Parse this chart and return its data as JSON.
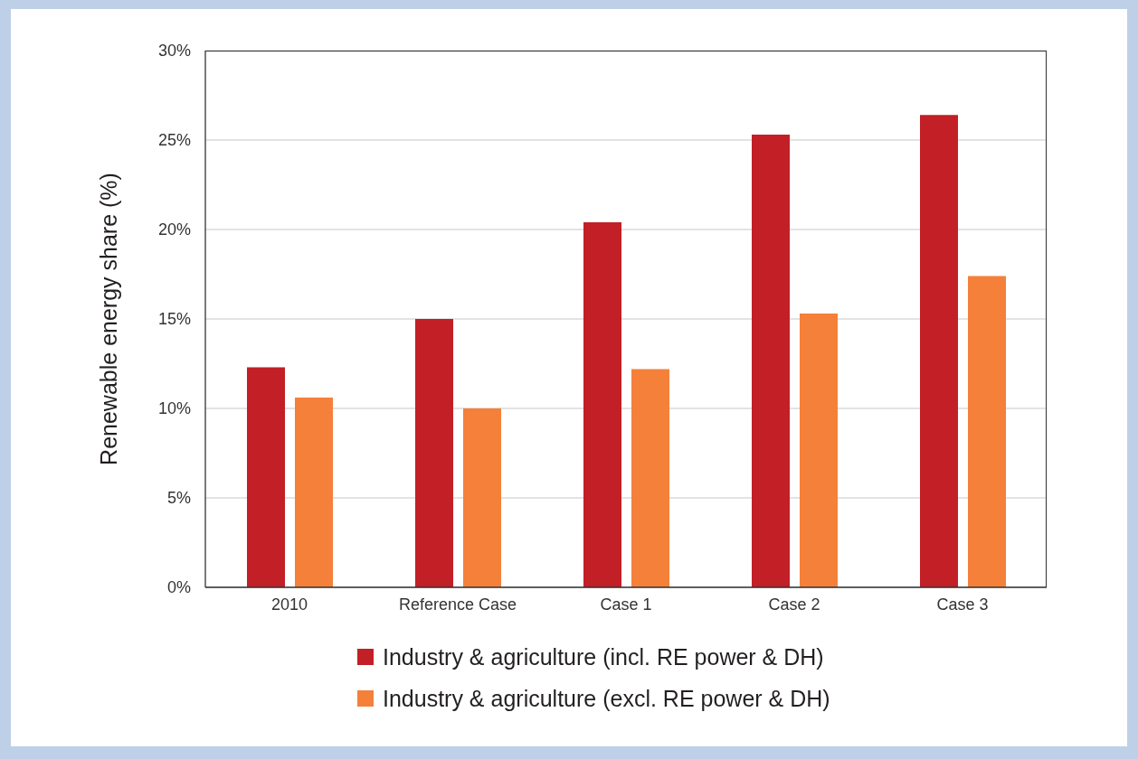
{
  "chart_data": {
    "type": "bar",
    "ylabel": "Renewable energy share (%)",
    "categories": [
      "2010",
      "Reference Case",
      "Case 1",
      "Case 2",
      "Case 3"
    ],
    "series": [
      {
        "name": "Industry & agriculture (incl. RE power & DH)",
        "color": "#c21f26",
        "values": [
          12.3,
          15.0,
          20.4,
          25.3,
          26.4
        ]
      },
      {
        "name": "Industry & agriculture (excl. RE power & DH)",
        "color": "#f4803a",
        "values": [
          10.6,
          10.0,
          12.2,
          15.3,
          17.4
        ]
      }
    ],
    "ylim": [
      0,
      30
    ],
    "yticks": [
      {
        "value": 0,
        "label": "0%"
      },
      {
        "value": 5,
        "label": "5%"
      },
      {
        "value": 10,
        "label": "10%"
      },
      {
        "value": 15,
        "label": "15%"
      },
      {
        "value": 20,
        "label": "20%"
      },
      {
        "value": 25,
        "label": "25%"
      },
      {
        "value": 30,
        "label": "30%"
      }
    ],
    "grid": "y",
    "legend": "bottom"
  }
}
